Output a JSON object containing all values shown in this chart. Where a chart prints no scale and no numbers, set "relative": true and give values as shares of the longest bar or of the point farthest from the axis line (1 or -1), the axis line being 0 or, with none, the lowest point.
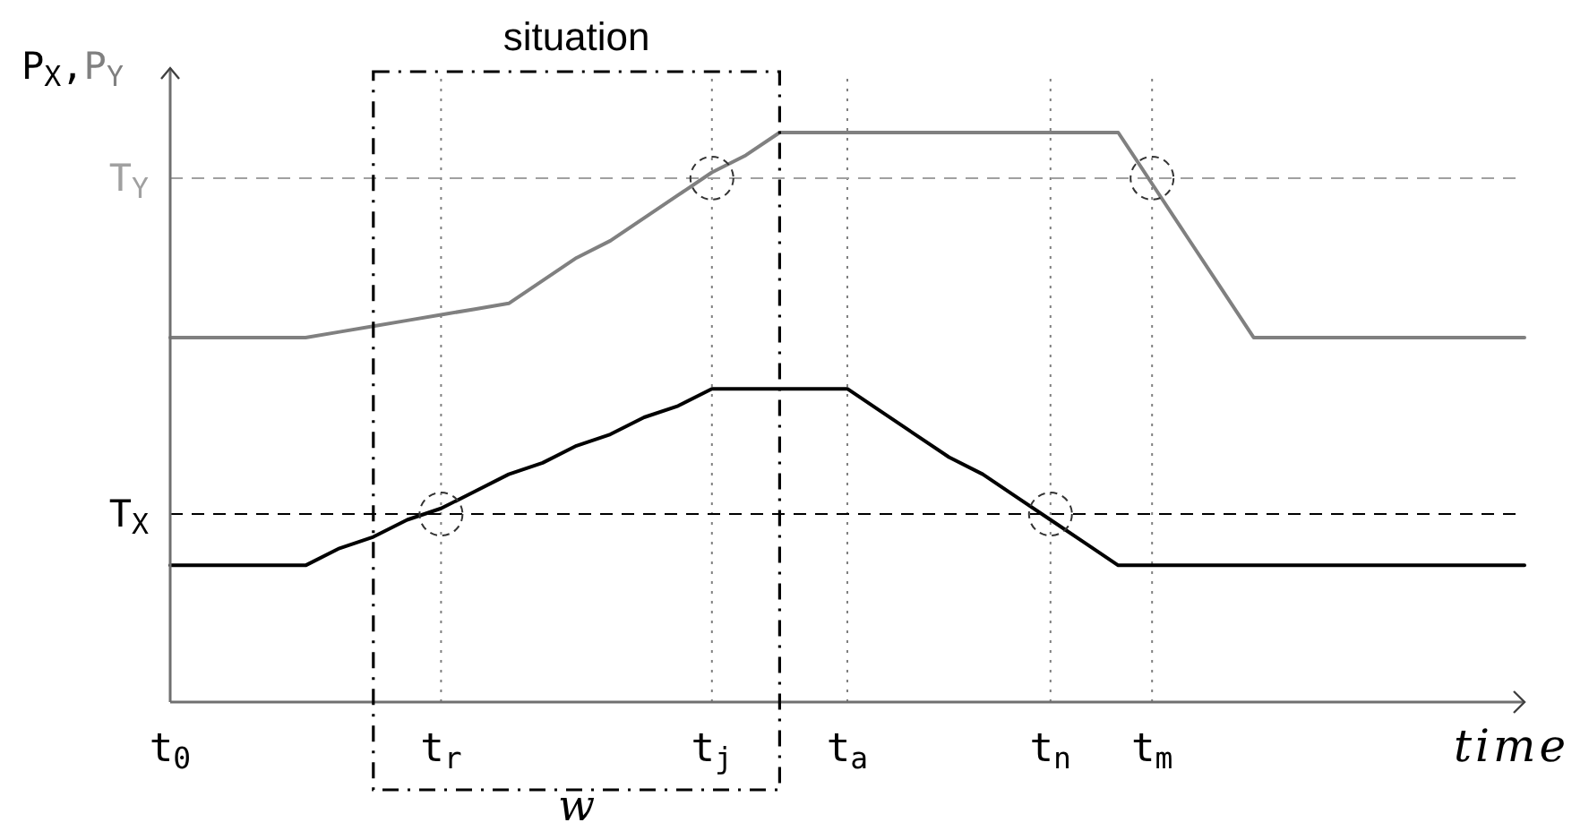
{
  "chart_data": {
    "type": "line",
    "relative": true,
    "title": "situation",
    "xlabel": "time",
    "ylabel": "P$_{X}$,P$_{Y}$",
    "annotations": [
      "w"
    ],
    "categories": [
      "t$_{0}$",
      null,
      null,
      null,
      null,
      null,
      null,
      null,
      "t$_{r}$",
      null,
      null,
      null,
      null,
      null,
      null,
      null,
      "t$_{j}$",
      null,
      null,
      null,
      "t$_{a}$",
      null,
      null,
      null,
      null,
      null,
      "t$_{n}$",
      null,
      null,
      "t$_{m}$",
      null,
      null,
      null,
      null,
      null,
      null,
      null,
      null,
      null,
      null,
      null
    ],
    "series": [
      {
        "color": "#000000",
        "values": [
          0.24,
          0.24,
          0.24,
          0.24,
          0.24,
          0.27,
          0.29,
          0.32,
          0.34,
          0.37,
          0.4,
          0.42,
          0.45,
          0.47,
          0.5,
          0.52,
          0.55,
          0.55,
          0.55,
          0.55,
          0.55,
          0.51,
          0.47,
          0.43,
          0.4,
          0.36,
          0.32,
          0.28,
          0.24,
          0.24,
          0.24,
          0.24,
          0.24,
          0.24,
          0.24,
          0.24,
          0.24,
          0.24,
          0.24,
          0.24,
          0.24
        ]
      },
      {
        "color": "#808080",
        "values": [
          0.64,
          0.64,
          0.64,
          0.64,
          0.64,
          0.65,
          0.66,
          0.67,
          0.68,
          0.69,
          0.7,
          0.74,
          0.78,
          0.81,
          0.85,
          0.89,
          0.93,
          0.96,
          1,
          1,
          1,
          1,
          1,
          1,
          1,
          1,
          1,
          1,
          1,
          0.91,
          0.82,
          0.73,
          0.64,
          0.64,
          0.64,
          0.64,
          0.64,
          0.64,
          0.64,
          0.64,
          0.64
        ]
      }
    ],
    "ref_lines": [
      {
        "axis": "y",
        "value": 0.33,
        "label": "T$_{X}$",
        "color": "#000000",
        "line_style": "dashed"
      },
      {
        "axis": "y",
        "value": 0.92,
        "label": "T$_{Y}$",
        "color": "#a0a0a0",
        "line_style": "dashed"
      },
      {
        "axis": "x",
        "value": "t$_{r}$",
        "color": "#808080",
        "line_style": "dotted"
      },
      {
        "axis": "x",
        "value": "t$_{j}$",
        "color": "#808080",
        "line_style": "dotted"
      },
      {
        "axis": "x",
        "value": "t$_{a}$",
        "color": "#808080",
        "line_style": "dotted"
      },
      {
        "axis": "x",
        "value": "t$_{n}$",
        "color": "#808080",
        "line_style": "dotted"
      },
      {
        "axis": "x",
        "value": "t$_{m}$",
        "color": "#808080",
        "line_style": "dotted"
      }
    ]
  }
}
